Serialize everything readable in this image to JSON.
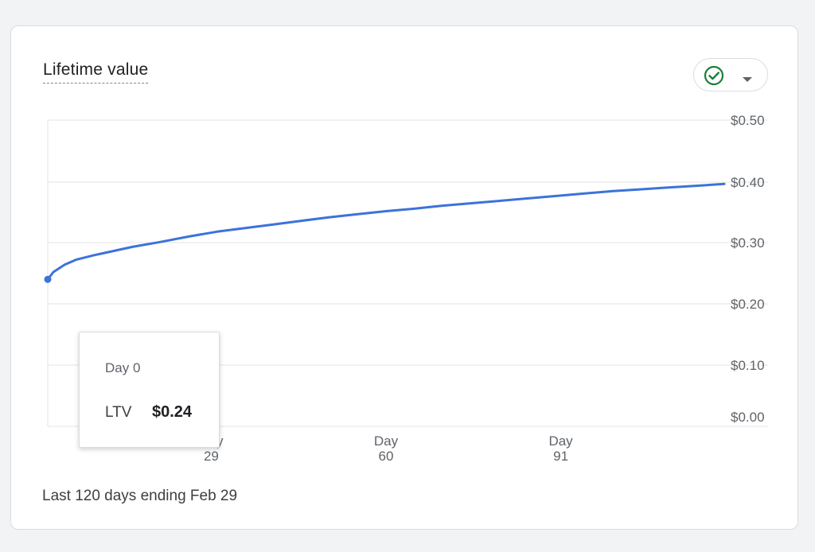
{
  "card": {
    "title": "Lifetime value",
    "footer": "Last 120 days ending Feb 29"
  },
  "status_chip": {
    "icon": "check-circle-icon",
    "caret_icon": "caret-down-icon",
    "icon_color": "#188038"
  },
  "tooltip": {
    "title": "Day 0",
    "metric_label": "LTV",
    "metric_value": "$0.24"
  },
  "colors": {
    "line": "#3b73d9",
    "grid": "#e3e3e3",
    "axis_text": "#5f6368"
  },
  "chart_data": {
    "type": "line",
    "title": "",
    "xlabel": "",
    "ylabel": "",
    "xlim": [
      0,
      120
    ],
    "ylim": [
      0,
      0.5
    ],
    "y_ticks": [
      0,
      0.1,
      0.2,
      0.3,
      0.4,
      0.5
    ],
    "y_tick_labels": [
      "$0.00",
      "$0.10",
      "$0.20",
      "$0.30",
      "$0.40",
      "$0.50"
    ],
    "x_ticks": [
      29,
      60,
      91
    ],
    "x_tick_labels": [
      [
        "Day",
        "29"
      ],
      [
        "Day",
        "60"
      ],
      [
        "Day",
        "91"
      ]
    ],
    "grid": true,
    "y_axis_side": "right",
    "series": [
      {
        "x": [
          0,
          1,
          3,
          5,
          8,
          10,
          15,
          20,
          25,
          30,
          35,
          40,
          45,
          50,
          55,
          60,
          65,
          70,
          75,
          80,
          85,
          90,
          95,
          100,
          105,
          110,
          115,
          120
        ],
        "y": [
          0.24,
          0.252,
          0.264,
          0.272,
          0.279,
          0.283,
          0.293,
          0.301,
          0.31,
          0.318,
          0.324,
          0.33,
          0.336,
          0.342,
          0.347,
          0.352,
          0.356,
          0.361,
          0.365,
          0.369,
          0.373,
          0.377,
          0.381,
          0.385,
          0.388,
          0.391,
          0.394,
          0.397
        ],
        "marker_at_first_point": true
      }
    ]
  }
}
